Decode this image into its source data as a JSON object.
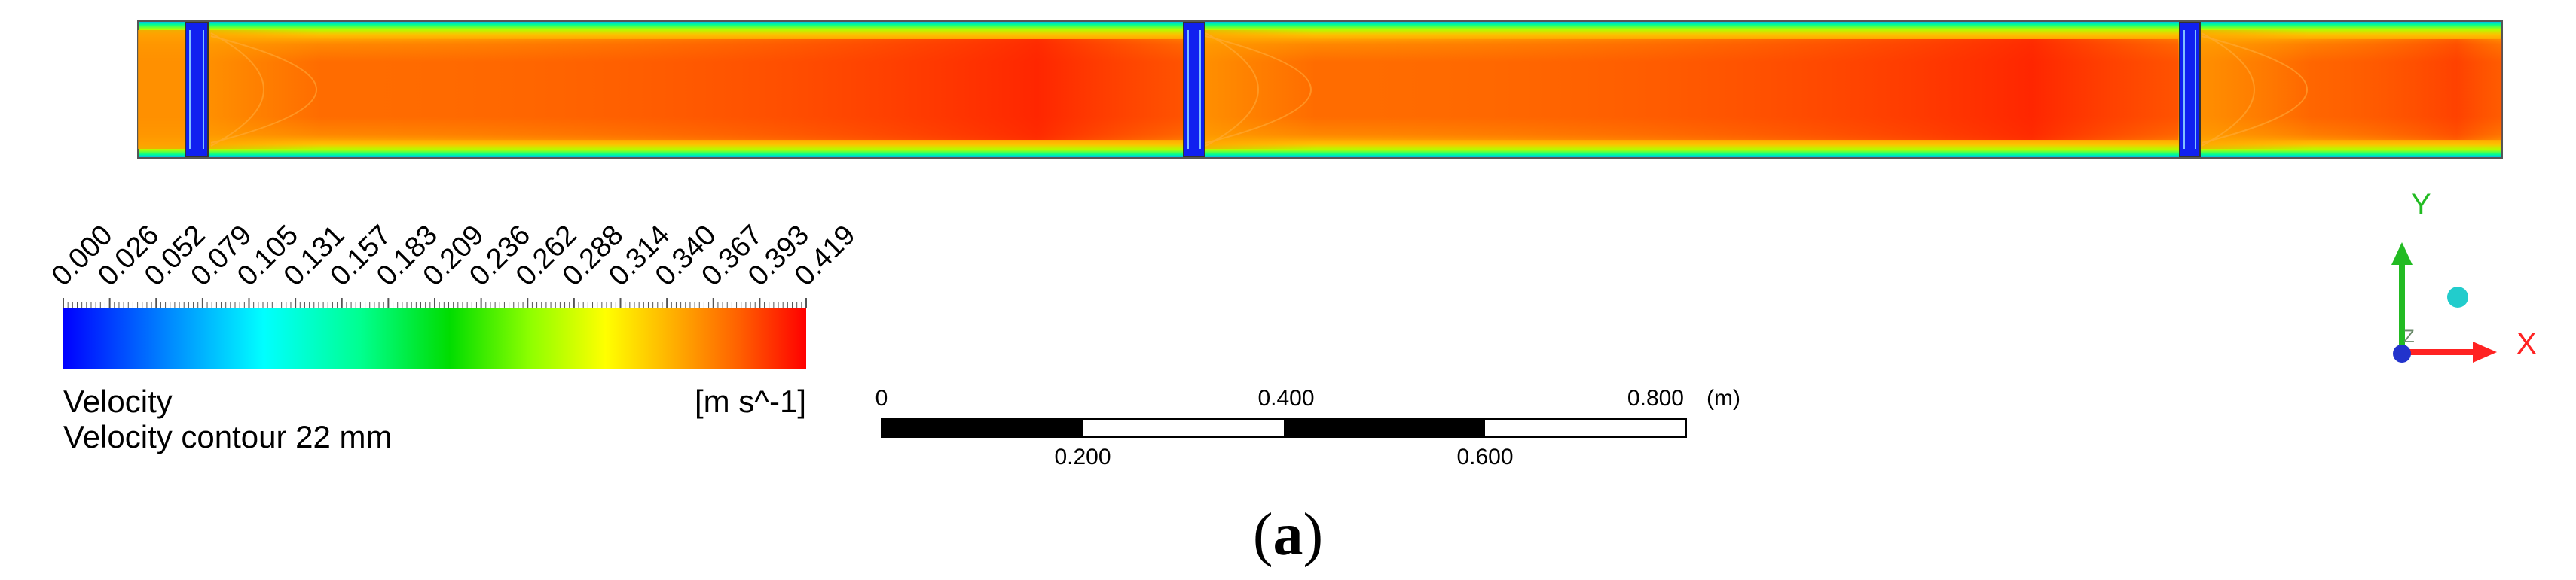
{
  "legend": {
    "title": "Velocity",
    "unit": "[m s^-1]",
    "subtitle": "Velocity contour 22 mm",
    "tick_labels": [
      "0.000",
      "0.026",
      "0.052",
      "0.079",
      "0.105",
      "0.131",
      "0.157",
      "0.183",
      "0.209",
      "0.236",
      "0.262",
      "0.288",
      "0.314",
      "0.340",
      "0.367",
      "0.393",
      "0.419"
    ],
    "range": [
      0.0,
      0.419
    ],
    "colors": [
      "#0000ff",
      "#00a0ff",
      "#00ffff",
      "#00ff90",
      "#00e000",
      "#90ff00",
      "#ffff00",
      "#ffb000",
      "#ff7000",
      "#ff0000"
    ]
  },
  "scale_bar": {
    "unit": "(m)",
    "top_labels": [
      "0",
      "0.400",
      "0.800"
    ],
    "bottom_labels": [
      "0.200",
      "0.600"
    ]
  },
  "axes": {
    "y_label": "Y",
    "x_label": "X",
    "y_color": "#22bb22",
    "x_color": "#ff2222",
    "z_color": "#2233cc"
  },
  "caption": {
    "label": "a"
  }
}
